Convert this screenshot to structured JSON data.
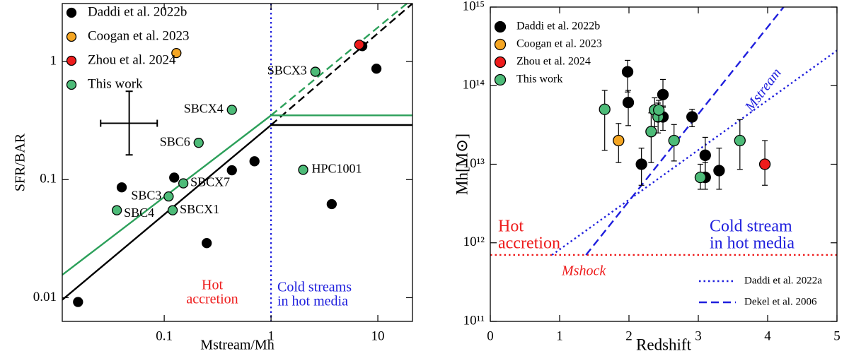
{
  "chart_data": [
    {
      "type": "scatter",
      "xscale": "log",
      "yscale": "log",
      "xlabel": "Mstream/Mh",
      "ylabel": "SFR/BAR",
      "xlim": [
        0.0111,
        21.1
      ],
      "ylim": [
        0.0063,
        3.1
      ],
      "xticks": [
        0.1,
        1,
        10
      ],
      "yticks": [
        0.01,
        0.1,
        1
      ],
      "legend": "upper left",
      "series": [
        {
          "name": "Daddi et al. 2022b",
          "color": "#000000",
          "x": [
            7.15,
            9.7,
            0.43,
            0.7,
            0.124,
            0.04,
            3.7,
            0.25,
            0.0156
          ],
          "values": [
            1.35,
            0.87,
            0.12,
            0.143,
            0.104,
            0.086,
            0.062,
            0.029,
            0.0092
          ]
        },
        {
          "name": "Coogan et al. 2023",
          "color": "#f5a623",
          "x": [
            0.13
          ],
          "values": [
            1.18
          ]
        },
        {
          "name": "Zhou et al. 2024",
          "color": "#ee1c1c",
          "x": [
            6.7
          ],
          "values": [
            1.39
          ]
        },
        {
          "name": "This work",
          "color": "#4dbb78",
          "labels": [
            "SBCX3",
            "SBCX4",
            "SBC6",
            "HPC1001",
            "SBCX7",
            "SBC3",
            "SBCX1",
            "SBC4"
          ],
          "x": [
            2.6,
            0.43,
            0.21,
            2.0,
            0.151,
            0.11,
            0.12,
            0.036
          ],
          "values": [
            0.82,
            0.39,
            0.205,
            0.121,
            0.093,
            0.072,
            0.055,
            0.055
          ]
        }
      ],
      "lines": [
        {
          "color": "#000000",
          "style": "solid",
          "x": [
            0.0111,
            1,
            21.1
          ],
          "values": [
            0.0096,
            0.29,
            0.29
          ]
        },
        {
          "color": "#000000",
          "style": "dashed",
          "x": [
            1,
            21.1
          ],
          "values": [
            0.29,
            3.1
          ]
        },
        {
          "color": "#2ca05a",
          "style": "solid",
          "x": [
            0.0111,
            1,
            21.1
          ],
          "values": [
            0.0156,
            0.35,
            0.35
          ]
        },
        {
          "color": "#2ca05a",
          "style": "dashed",
          "x": [
            1,
            18.7
          ],
          "values": [
            0.35,
            3.1
          ]
        }
      ],
      "vlines": [
        {
          "x": 1,
          "color": "#1f1fdd",
          "style": "dotted"
        }
      ],
      "error_cross": {
        "x": 0.047,
        "y": 0.3,
        "x_range": [
          0.0254,
          0.086
        ],
        "y_range": [
          0.162,
          0.56
        ]
      },
      "annotations": [
        {
          "text": [
            "Hot",
            "accretion"
          ],
          "color": "#ee1c1c"
        },
        {
          "text": [
            "Cold streams",
            "in hot media"
          ],
          "color": "#1f1fdd"
        }
      ]
    },
    {
      "type": "scatter",
      "xscale": "linear",
      "yscale": "log",
      "xlabel": "Redshift",
      "ylabel": "Mh[M⊙]",
      "xlim": [
        0,
        5
      ],
      "ylim": [
        100000000000.0,
        1000000000000000.0
      ],
      "xticks": [
        0,
        1,
        2,
        3,
        4,
        5
      ],
      "yticks": [
        {
          "value": 100000000000.0,
          "label": "10¹¹"
        },
        {
          "value": 1000000000000.0,
          "label": "10¹²"
        },
        {
          "value": 10000000000000.0,
          "label": "10¹³"
        },
        {
          "value": 100000000000000.0,
          "label": "10¹⁴"
        },
        {
          "value": 1000000000000000.0,
          "label": "10¹⁵"
        }
      ],
      "legend": "upper left",
      "series": [
        {
          "name": "Daddi et al. 2022b",
          "color": "#000000",
          "x": [
            1.98,
            1.99,
            2.18,
            2.49,
            2.49,
            2.91,
            3.1,
            3.1,
            3.3
          ],
          "values": [
            150000000000000.0,
            61000000000000.0,
            10000000000000.0,
            77000000000000.0,
            40000000000000.0,
            40000000000000.0,
            13000000000000.0,
            6800000000000.0,
            8300000000000.0
          ],
          "y_low": [
            83000000000000.0,
            31000000000000.0,
            5400000000000.0,
            53000000000000.0,
            27000000000000.0,
            30000000000000.0,
            6600000000000.0,
            4800000000000.0,
            4800000000000.0
          ],
          "y_high": [
            210000000000000.0,
            87000000000000.0,
            16000000000000.0,
            120000000000000.0,
            55000000000000.0,
            50000000000000.0,
            22000000000000.0,
            10500000000000.0,
            16000000000000.0
          ]
        },
        {
          "name": "Coogan et al. 2023",
          "color": "#f5a623",
          "x": [
            1.85
          ],
          "values": [
            20000000000000.0
          ],
          "y_low": [
            10500000000000.0
          ],
          "y_high": [
            33000000000000.0
          ]
        },
        {
          "name": "Zhou et al. 2024",
          "color": "#ee1c1c",
          "x": [
            3.96
          ],
          "values": [
            10000000000000.0
          ],
          "y_low": [
            5400000000000.0
          ],
          "y_high": [
            20000000000000.0
          ]
        },
        {
          "name": "This work",
          "color": "#4dbb78",
          "x": [
            1.65,
            2.32,
            2.37,
            2.42,
            2.43,
            2.65,
            3.03,
            3.6
          ],
          "values": [
            50000000000000.0,
            26000000000000.0,
            49000000000000.0,
            40000000000000.0,
            49000000000000.0,
            20000000000000.0,
            6800000000000.0,
            20000000000000.0
          ],
          "y_low": [
            15000000000000.0,
            10500000000000.0,
            30000000000000.0,
            25000000000000.0,
            35000000000000.0,
            11000000000000.0,
            4800000000000.0,
            8600000000000.0
          ],
          "y_high": [
            87000000000000.0,
            45000000000000.0,
            70000000000000.0,
            60000000000000.0,
            65000000000000.0,
            32000000000000.0,
            10000000000000.0,
            37000000000000.0
          ]
        }
      ],
      "lines": [
        {
          "color": "#ee1c1c",
          "style": "dotted",
          "x": [
            0,
            5
          ],
          "values": [
            700000000000.0,
            700000000000.0
          ]
        },
        {
          "name": "Daddi et al. 2022a",
          "color": "#1f1fdd",
          "style": "dotted",
          "x": [
            0.89,
            5
          ],
          "values": [
            700000000000.0,
            280000000000000.0
          ]
        },
        {
          "name": "Dekel et al. 2006",
          "color": "#1f1fdd",
          "style": "dashed",
          "x": [
            1.38,
            4.23
          ],
          "values": [
            700000000000.0,
            1000000000000000.0
          ]
        }
      ],
      "annotations": [
        {
          "text": [
            "Hot",
            "accretion"
          ],
          "color": "#ee1c1c"
        },
        {
          "text": [
            "Cold stream",
            "in hot media"
          ],
          "color": "#1f1fdd"
        },
        {
          "text": [
            "Mshock"
          ],
          "color": "#ee1c1c"
        },
        {
          "text": [
            "Mstream"
          ],
          "color": "#1f1fdd"
        }
      ]
    }
  ]
}
